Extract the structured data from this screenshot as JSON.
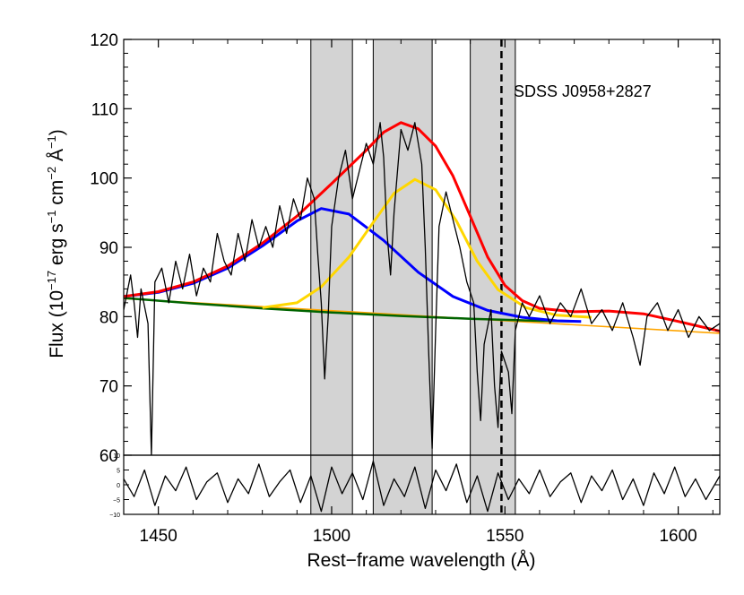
{
  "chart_data": {
    "type": "line",
    "object_label": "SDSS J0958+2827",
    "xlabel": "Rest−frame wavelength (Å)",
    "ylabel": {
      "main": "Flux (10",
      "exp1": "−17",
      "unit1": " erg s",
      "exp2": "−1",
      "unit2": " cm",
      "exp3": "−2",
      "unit3": " Å",
      "exp4": "−1",
      "close": ")"
    },
    "xlim": [
      1440,
      1612
    ],
    "ylim": [
      60,
      120
    ],
    "residual_ylim": [
      -10,
      10
    ],
    "x_ticks": [
      1450,
      1500,
      1550,
      1600
    ],
    "x_tick_labels": [
      "1450",
      "1500",
      "1550",
      "1600"
    ],
    "y_ticks": [
      60,
      70,
      80,
      90,
      100,
      110,
      120
    ],
    "y_tick_labels": [
      "60",
      "70",
      "80",
      "90",
      "100",
      "110",
      "120"
    ],
    "residual_ticks": [
      -10,
      -5,
      0,
      5,
      10
    ],
    "residual_tick_labels": [
      "−10",
      "−5",
      "0",
      "5",
      "10"
    ],
    "masked_regions": [
      [
        1494,
        1506
      ],
      [
        1512,
        1529
      ],
      [
        1540,
        1553
      ]
    ],
    "reference_line_x": 1549,
    "colors": {
      "total": "#ff0000",
      "component_blue": "#0000ff",
      "component_yellow": "#ffd700",
      "continuum_green": "#006400",
      "continuum_orange": "#ffa500",
      "spectrum": "#000000",
      "mask": "#d3d3d3"
    },
    "series": [
      {
        "name": "continuum",
        "color": "#ffa500",
        "points": [
          [
            1440,
            82.6
          ],
          [
            1612,
            77.6
          ]
        ]
      },
      {
        "name": "continuum-fit",
        "color": "#006400",
        "points": [
          [
            1440,
            82.7
          ],
          [
            1460,
            81.9
          ],
          [
            1480,
            81.2
          ],
          [
            1500,
            80.6
          ],
          [
            1520,
            80.1
          ],
          [
            1540,
            79.7
          ],
          [
            1560,
            79.4
          ],
          [
            1570,
            79.3
          ]
        ]
      },
      {
        "name": "blue-component",
        "color": "#0000ff",
        "points": [
          [
            1440,
            82.9
          ],
          [
            1450,
            83.5
          ],
          [
            1460,
            84.8
          ],
          [
            1470,
            87.0
          ],
          [
            1480,
            90.2
          ],
          [
            1490,
            93.8
          ],
          [
            1497,
            95.6
          ],
          [
            1505,
            94.8
          ],
          [
            1515,
            91.0
          ],
          [
            1525,
            86.4
          ],
          [
            1535,
            82.9
          ],
          [
            1545,
            80.9
          ],
          [
            1555,
            79.9
          ],
          [
            1565,
            79.4
          ],
          [
            1572,
            79.3
          ]
        ]
      },
      {
        "name": "yellow-component",
        "color": "#ffd700",
        "points": [
          [
            1480,
            81.3
          ],
          [
            1490,
            82.0
          ],
          [
            1497,
            84.3
          ],
          [
            1505,
            88.6
          ],
          [
            1512,
            93.6
          ],
          [
            1518,
            97.8
          ],
          [
            1524,
            99.8
          ],
          [
            1530,
            98.3
          ],
          [
            1536,
            93.8
          ],
          [
            1542,
            88.0
          ],
          [
            1548,
            83.9
          ],
          [
            1556,
            81.3
          ],
          [
            1565,
            80.2
          ],
          [
            1575,
            79.9
          ]
        ]
      },
      {
        "name": "total-fit",
        "color": "#ff0000",
        "points": [
          [
            1440,
            82.9
          ],
          [
            1450,
            83.6
          ],
          [
            1460,
            85.0
          ],
          [
            1470,
            87.3
          ],
          [
            1480,
            90.6
          ],
          [
            1490,
            94.5
          ],
          [
            1500,
            99.2
          ],
          [
            1510,
            104.0
          ],
          [
            1515,
            106.6
          ],
          [
            1520,
            108.0
          ],
          [
            1525,
            107.1
          ],
          [
            1530,
            104.6
          ],
          [
            1535,
            100.3
          ],
          [
            1540,
            94.5
          ],
          [
            1545,
            88.6
          ],
          [
            1550,
            84.5
          ],
          [
            1555,
            82.3
          ],
          [
            1560,
            81.2
          ],
          [
            1570,
            80.7
          ],
          [
            1580,
            80.8
          ],
          [
            1590,
            80.4
          ],
          [
            1600,
            79.3
          ],
          [
            1612,
            77.9
          ]
        ]
      },
      {
        "name": "observed-spectrum",
        "color": "#000000",
        "points": [
          [
            1440,
            81
          ],
          [
            1442,
            86
          ],
          [
            1443,
            82
          ],
          [
            1444,
            77
          ],
          [
            1445,
            84
          ],
          [
            1447,
            79
          ],
          [
            1448,
            60
          ],
          [
            1449,
            85
          ],
          [
            1451,
            87
          ],
          [
            1453,
            82
          ],
          [
            1455,
            88
          ],
          [
            1457,
            84
          ],
          [
            1459,
            89
          ],
          [
            1461,
            83
          ],
          [
            1463,
            87
          ],
          [
            1465,
            85
          ],
          [
            1467,
            92
          ],
          [
            1469,
            88
          ],
          [
            1471,
            86
          ],
          [
            1473,
            92
          ],
          [
            1475,
            88
          ],
          [
            1477,
            94
          ],
          [
            1479,
            90
          ],
          [
            1481,
            93
          ],
          [
            1483,
            90
          ],
          [
            1485,
            96
          ],
          [
            1487,
            92
          ],
          [
            1489,
            97
          ],
          [
            1491,
            94
          ],
          [
            1493,
            100
          ],
          [
            1495,
            97
          ],
          [
            1496,
            89
          ],
          [
            1497,
            82
          ],
          [
            1498,
            71
          ],
          [
            1499,
            80
          ],
          [
            1500,
            93
          ],
          [
            1502,
            100
          ],
          [
            1504,
            104
          ],
          [
            1506,
            97
          ],
          [
            1508,
            101
          ],
          [
            1510,
            105
          ],
          [
            1512,
            102
          ],
          [
            1514,
            108
          ],
          [
            1515,
            103
          ],
          [
            1516,
            92
          ],
          [
            1517,
            86
          ],
          [
            1518,
            95
          ],
          [
            1520,
            107
          ],
          [
            1522,
            104
          ],
          [
            1524,
            108
          ],
          [
            1526,
            102
          ],
          [
            1527,
            90
          ],
          [
            1528,
            75
          ],
          [
            1529,
            61
          ],
          [
            1530,
            78
          ],
          [
            1531,
            93
          ],
          [
            1533,
            98
          ],
          [
            1535,
            94
          ],
          [
            1537,
            90
          ],
          [
            1539,
            85
          ],
          [
            1541,
            82
          ],
          [
            1542,
            72
          ],
          [
            1543,
            65
          ],
          [
            1544,
            76
          ],
          [
            1546,
            81
          ],
          [
            1547,
            70
          ],
          [
            1548,
            64
          ],
          [
            1549,
            75
          ],
          [
            1551,
            72
          ],
          [
            1552,
            66
          ],
          [
            1553,
            78
          ],
          [
            1555,
            82
          ],
          [
            1557,
            80
          ],
          [
            1560,
            83
          ],
          [
            1563,
            79
          ],
          [
            1566,
            82
          ],
          [
            1569,
            80
          ],
          [
            1572,
            84
          ],
          [
            1575,
            79
          ],
          [
            1578,
            81
          ],
          [
            1581,
            78
          ],
          [
            1584,
            82
          ],
          [
            1587,
            77
          ],
          [
            1589,
            73
          ],
          [
            1591,
            80
          ],
          [
            1594,
            82
          ],
          [
            1597,
            78
          ],
          [
            1600,
            81
          ],
          [
            1603,
            77
          ],
          [
            1606,
            80
          ],
          [
            1609,
            78
          ],
          [
            1612,
            79
          ]
        ]
      },
      {
        "name": "residuals",
        "color": "#000000",
        "points": [
          [
            1440,
            2
          ],
          [
            1443,
            -4
          ],
          [
            1446,
            5
          ],
          [
            1449,
            -7
          ],
          [
            1452,
            3
          ],
          [
            1455,
            -2
          ],
          [
            1458,
            6
          ],
          [
            1461,
            -5
          ],
          [
            1464,
            1
          ],
          [
            1467,
            4
          ],
          [
            1470,
            -6
          ],
          [
            1473,
            2
          ],
          [
            1476,
            -3
          ],
          [
            1479,
            7
          ],
          [
            1482,
            -4
          ],
          [
            1485,
            1
          ],
          [
            1488,
            5
          ],
          [
            1491,
            -6
          ],
          [
            1494,
            3
          ],
          [
            1497,
            -9
          ],
          [
            1500,
            6
          ],
          [
            1503,
            -3
          ],
          [
            1506,
            4
          ],
          [
            1509,
            -5
          ],
          [
            1512,
            8
          ],
          [
            1515,
            -7
          ],
          [
            1518,
            2
          ],
          [
            1521,
            -4
          ],
          [
            1524,
            6
          ],
          [
            1527,
            -8
          ],
          [
            1530,
            5
          ],
          [
            1533,
            -2
          ],
          [
            1536,
            7
          ],
          [
            1539,
            -6
          ],
          [
            1542,
            3
          ],
          [
            1545,
            -9
          ],
          [
            1548,
            4
          ],
          [
            1551,
            -5
          ],
          [
            1554,
            2
          ],
          [
            1557,
            -3
          ],
          [
            1560,
            5
          ],
          [
            1563,
            -4
          ],
          [
            1566,
            1
          ],
          [
            1569,
            4
          ],
          [
            1572,
            -6
          ],
          [
            1575,
            3
          ],
          [
            1578,
            -2
          ],
          [
            1581,
            5
          ],
          [
            1584,
            -5
          ],
          [
            1587,
            2
          ],
          [
            1590,
            -7
          ],
          [
            1593,
            4
          ],
          [
            1596,
            -3
          ],
          [
            1599,
            6
          ],
          [
            1602,
            -4
          ],
          [
            1605,
            2
          ],
          [
            1608,
            -5
          ],
          [
            1612,
            3
          ]
        ]
      }
    ]
  }
}
